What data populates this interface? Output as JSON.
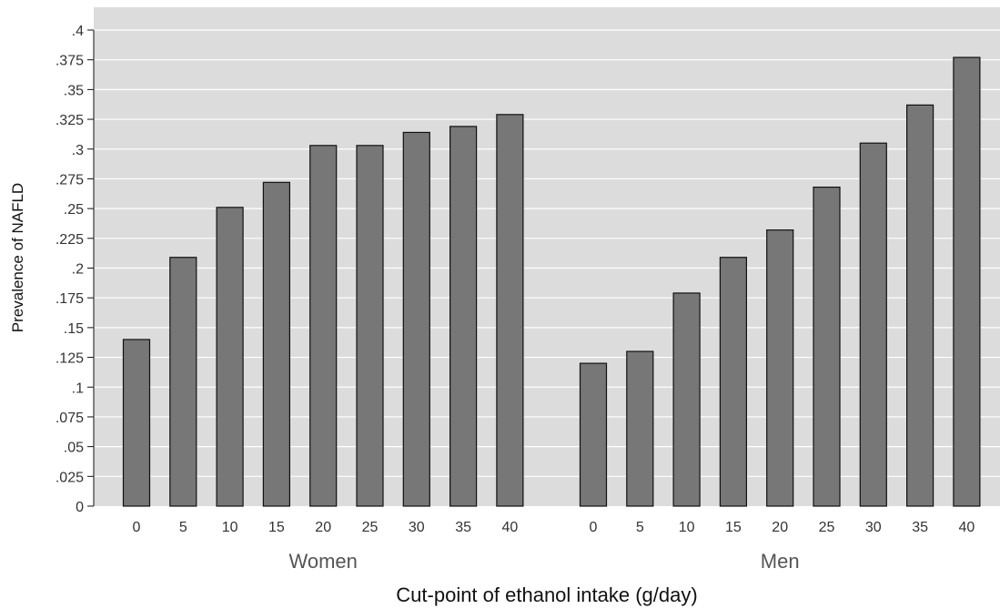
{
  "chart_data": {
    "type": "bar",
    "title": "",
    "xlabel": "Cut-point of ethanol intake (g/day)",
    "ylabel": "Prevalence of NAFLD",
    "ylim": [
      0,
      0.4
    ],
    "y_ticks": [
      {
        "value": 0,
        "label": "0"
      },
      {
        "value": 0.025,
        "label": ".025"
      },
      {
        "value": 0.05,
        "label": ".05"
      },
      {
        "value": 0.075,
        "label": ".075"
      },
      {
        "value": 0.1,
        "label": ".1"
      },
      {
        "value": 0.125,
        "label": ".125"
      },
      {
        "value": 0.15,
        "label": ".15"
      },
      {
        "value": 0.175,
        "label": ".175"
      },
      {
        "value": 0.2,
        "label": ".2"
      },
      {
        "value": 0.225,
        "label": ".225"
      },
      {
        "value": 0.25,
        "label": ".25"
      },
      {
        "value": 0.275,
        "label": ".275"
      },
      {
        "value": 0.3,
        "label": ".3"
      },
      {
        "value": 0.325,
        "label": ".325"
      },
      {
        "value": 0.35,
        "label": ".35"
      },
      {
        "value": 0.375,
        "label": ".375"
      },
      {
        "value": 0.4,
        "label": ".4"
      }
    ],
    "grid": true,
    "legend": "none",
    "colors": {
      "plot_background": "#dcdcdc",
      "bar_fill": "#777777",
      "bar_stroke": "#111111",
      "grid": "#ffffff"
    },
    "groups": [
      {
        "name": "Women",
        "categories": [
          "0",
          "5",
          "10",
          "15",
          "20",
          "25",
          "30",
          "35",
          "40"
        ],
        "values": [
          0.14,
          0.209,
          0.251,
          0.272,
          0.303,
          0.303,
          0.314,
          0.319,
          0.329
        ]
      },
      {
        "name": "Men",
        "categories": [
          "0",
          "5",
          "10",
          "15",
          "20",
          "25",
          "30",
          "35",
          "40"
        ],
        "values": [
          0.12,
          0.13,
          0.179,
          0.209,
          0.232,
          0.268,
          0.305,
          0.337,
          0.377
        ]
      }
    ]
  }
}
